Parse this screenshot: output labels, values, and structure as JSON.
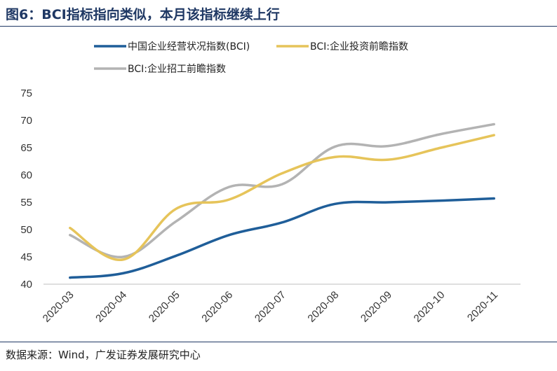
{
  "header": {
    "title": "图6：BCI指标指向类似，本月该指标继续上行"
  },
  "footer": {
    "source": "数据来源：Wind，广发证券发展研究中心"
  },
  "chart_data": {
    "type": "line",
    "title": "BCI指标指向类似，本月该指标继续上行",
    "xlabel": "",
    "ylabel": "",
    "categories": [
      "2020-03",
      "2020-04",
      "2020-05",
      "2020-06",
      "2020-07",
      "2020-08",
      "2020-09",
      "2020-10",
      "2020-11"
    ],
    "ylim": [
      40,
      75
    ],
    "yticks": [
      40,
      45,
      50,
      55,
      60,
      65,
      70,
      75
    ],
    "grid": false,
    "legend_position": "top",
    "series": [
      {
        "name": "中国企业经营状况指数(BCI)",
        "color": "#1f5e99",
        "values": [
          41.2,
          42.0,
          45.2,
          49.0,
          51.3,
          54.7,
          55.0,
          55.3,
          55.7
        ]
      },
      {
        "name": "BCI:企业投资前瞻指数",
        "color": "#e6c45a",
        "values": [
          50.3,
          44.5,
          53.8,
          55.5,
          60.3,
          63.3,
          62.8,
          65.0,
          67.3
        ]
      },
      {
        "name": "BCI:企业招工前瞻指数",
        "color": "#b3b3b3",
        "values": [
          49.0,
          45.0,
          51.5,
          57.8,
          58.3,
          65.2,
          65.3,
          67.5,
          69.3
        ]
      }
    ]
  }
}
